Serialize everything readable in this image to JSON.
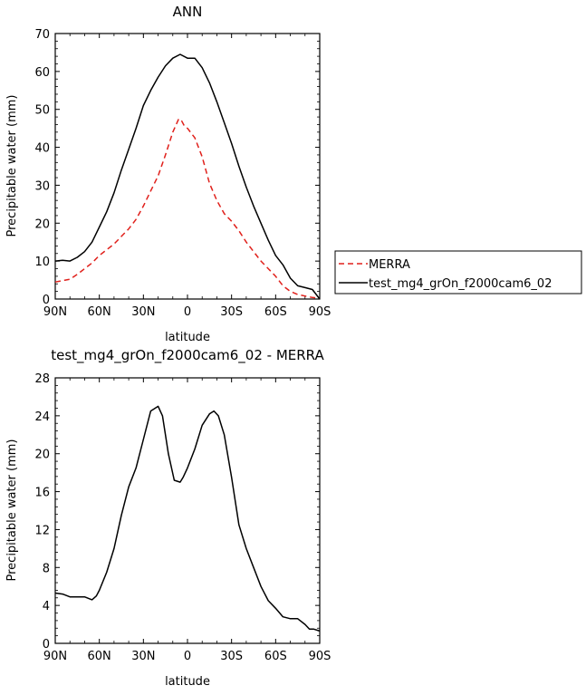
{
  "chart_data": [
    {
      "type": "line",
      "title": "ANN",
      "xlabel": "latitude",
      "ylabel": "Precipitable water (mm)",
      "x_ticks": [
        "90N",
        "60N",
        "30N",
        "0",
        "30S",
        "60S",
        "90S"
      ],
      "xlim": [
        90,
        -90
      ],
      "ylim": [
        0,
        70
      ],
      "y_ticks": [
        0,
        10,
        20,
        30,
        40,
        50,
        60,
        70
      ],
      "legend_position": "right",
      "series": [
        {
          "name": "MERRA",
          "color": "#e0201b",
          "style": "dashed",
          "x": [
            90,
            80,
            75,
            70,
            65,
            60,
            55,
            50,
            45,
            40,
            35,
            30,
            25,
            20,
            15,
            10,
            6,
            4,
            2,
            0,
            -5,
            -10,
            -15,
            -20,
            -25,
            -30,
            -35,
            -40,
            -45,
            -50,
            -55,
            -60,
            -65,
            -70,
            -75,
            -80,
            -85,
            -90
          ],
          "y": [
            4.5,
            5.2,
            6.5,
            8,
            9.5,
            11.5,
            13,
            14.5,
            16.5,
            18.5,
            21,
            24.5,
            28.5,
            32.5,
            38,
            44,
            47.5,
            47,
            45.5,
            45,
            42.5,
            37.5,
            30.5,
            26,
            22.5,
            20.5,
            18,
            15,
            12.5,
            10,
            8,
            6,
            3.5,
            2,
            1.2,
            0.8,
            0.4,
            0.2
          ]
        },
        {
          "name": "test_mg4_grOn_f2000cam6_02",
          "color": "#000000",
          "style": "solid",
          "x": [
            90,
            85,
            80,
            75,
            70,
            65,
            60,
            55,
            50,
            45,
            40,
            35,
            30,
            25,
            20,
            15,
            10,
            5,
            0,
            -5,
            -10,
            -15,
            -20,
            -25,
            -30,
            -35,
            -40,
            -45,
            -50,
            -55,
            -60,
            -65,
            -70,
            -75,
            -80,
            -85,
            -90
          ],
          "y": [
            10,
            10.2,
            10,
            11,
            12.5,
            15,
            19,
            23,
            28,
            34,
            39.5,
            45,
            51,
            55,
            58.5,
            61.5,
            63.5,
            64.5,
            63.5,
            63.5,
            61,
            57,
            52,
            46.5,
            41,
            35,
            29.5,
            24.5,
            20,
            15.5,
            11.5,
            9,
            5.5,
            3.5,
            3,
            2.5,
            0
          ]
        }
      ]
    },
    {
      "type": "line",
      "title": "test_mg4_grOn_f2000cam6_02 - MERRA",
      "xlabel": "latitude",
      "ylabel": "Precipitable water (mm)",
      "x_ticks": [
        "90N",
        "60N",
        "30N",
        "0",
        "30S",
        "60S",
        "90S"
      ],
      "xlim": [
        90,
        -90
      ],
      "ylim": [
        0,
        28
      ],
      "y_ticks": [
        0,
        4,
        8,
        12,
        16,
        20,
        24,
        28
      ],
      "series": [
        {
          "color": "#000000",
          "style": "solid",
          "x": [
            90,
            85,
            80,
            75,
            70,
            65,
            62,
            60,
            55,
            50,
            45,
            40,
            35,
            30,
            25,
            20,
            17,
            13,
            9,
            5,
            3,
            0,
            -5,
            -10,
            -15,
            -18,
            -21,
            -25,
            -30,
            -35,
            -40,
            -45,
            -50,
            -55,
            -60,
            -65,
            -70,
            -75,
            -80,
            -83,
            -86,
            -90
          ],
          "y": [
            5.3,
            5.2,
            4.9,
            4.9,
            4.9,
            4.6,
            5,
            5.6,
            7.5,
            10,
            13.5,
            16.5,
            18.5,
            21.5,
            24.5,
            25,
            24,
            20,
            17.2,
            17,
            17.5,
            18.5,
            20.5,
            23,
            24.2,
            24.5,
            24,
            22,
            17.5,
            12.5,
            10,
            8,
            6,
            4.5,
            3.7,
            2.8,
            2.6,
            2.6,
            2,
            1.5,
            1.5,
            1.3
          ]
        }
      ]
    }
  ]
}
